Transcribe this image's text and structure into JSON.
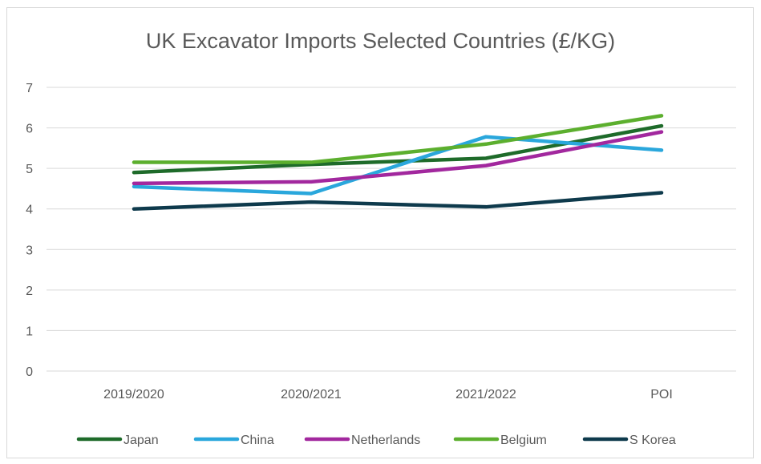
{
  "chart_data": {
    "type": "line",
    "title": "UK Excavator Imports Selected Countries (£/KG)",
    "xlabel": "",
    "ylabel": "",
    "categories": [
      "2019/2020",
      "2020/2021",
      "2021/2022",
      "POI"
    ],
    "ylim": [
      0,
      7
    ],
    "yticks": [
      0,
      1,
      2,
      3,
      4,
      5,
      6,
      7
    ],
    "grid": true,
    "legend_position": "bottom",
    "series": [
      {
        "name": "Japan",
        "color": "#1e6b2a",
        "values": [
          4.9,
          5.1,
          5.25,
          6.05
        ]
      },
      {
        "name": "China",
        "color": "#2aa7dc",
        "values": [
          4.55,
          4.38,
          5.78,
          5.45
        ]
      },
      {
        "name": "Netherlands",
        "color": "#a2289e",
        "values": [
          4.63,
          4.67,
          5.07,
          5.9
        ]
      },
      {
        "name": "Belgium",
        "color": "#5caf2e",
        "values": [
          5.15,
          5.15,
          5.6,
          6.3
        ]
      },
      {
        "name": "S Korea",
        "color": "#0e3a4c",
        "values": [
          4.0,
          4.17,
          4.05,
          4.4
        ]
      }
    ]
  }
}
